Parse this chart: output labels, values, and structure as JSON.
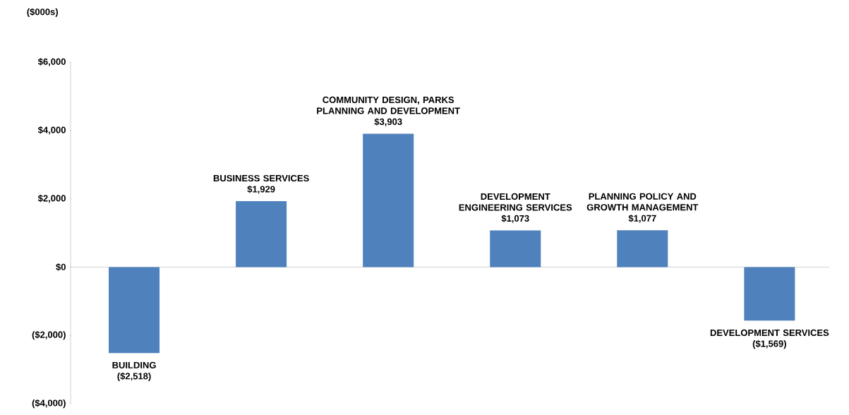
{
  "chart_data": {
    "type": "bar",
    "ylabel": "($000s)",
    "categories": [
      "BUILDING",
      "BUSINESS SERVICES",
      "COMMUNITY DESIGN, PARKS PLANNING AND DEVELOPMENT",
      "DEVELOPMENT ENGINEERING SERVICES",
      "PLANNING POLICY AND GROWTH MANAGEMENT",
      "DEVELOPMENT SERVICES"
    ],
    "values": [
      -2518,
      1929,
      3903,
      1073,
      1077,
      -1569
    ],
    "value_labels": [
      "($2,518)",
      "$1,929",
      "$3,903",
      "$1,073",
      "$1,077",
      "($1,569)"
    ],
    "color": "#4f81bd",
    "ylim": [
      -4000,
      6000
    ],
    "yticks": [
      {
        "value": -4000,
        "label": "($4,000)"
      },
      {
        "value": -2000,
        "label": "($2,000)"
      },
      {
        "value": 0,
        "label": "$0"
      },
      {
        "value": 2000,
        "label": "$2,000"
      },
      {
        "value": 4000,
        "label": "$4,000"
      },
      {
        "value": 6000,
        "label": "$6,000"
      }
    ]
  }
}
